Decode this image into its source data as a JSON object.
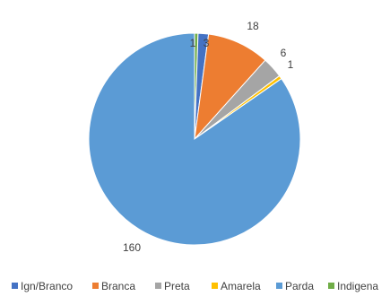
{
  "chart_data": {
    "type": "pie",
    "title": "",
    "categories": [
      "Ign/Branco",
      "Branca",
      "Preta",
      "Amarela",
      "Parda",
      "Indigena"
    ],
    "values": [
      3,
      18,
      6,
      1,
      160,
      1
    ],
    "colors": [
      "#4472C4",
      "#ED7D31",
      "#A5A5A5",
      "#FFC000",
      "#5B9BD5",
      "#70AD47"
    ],
    "start_category": "Indigena",
    "data_labels": true,
    "legend_position": "bottom"
  }
}
